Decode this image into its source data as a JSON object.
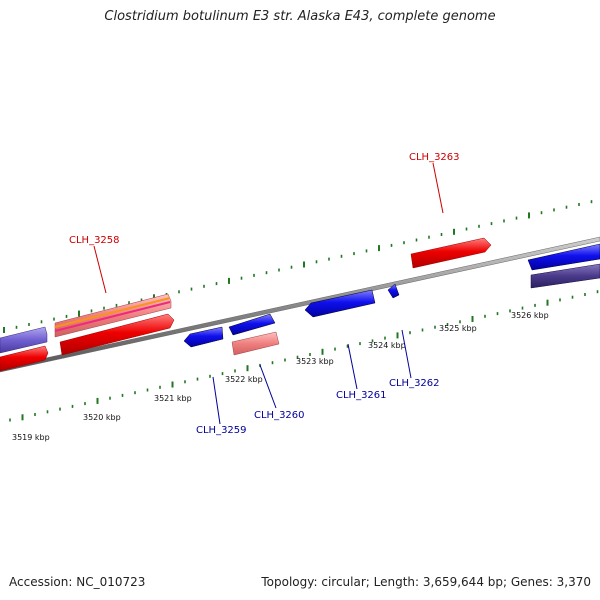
{
  "title": "Clostridium botulinum E3 str. Alaska E43, complete genome",
  "footer": {
    "accession": "Accession: NC_010723",
    "summary": "Topology: circular; Length: 3,659,644 bp; Genes: 3,370"
  },
  "scale_labels": [
    "3519 kbp",
    "3520 kbp",
    "3521 kbp",
    "3522 kbp",
    "3523 kbp",
    "3524 kbp",
    "3525 kbp",
    "3526 kbp"
  ],
  "forward_genes": [
    {
      "label": "CLH_3258",
      "color": "#cc0000"
    },
    {
      "label": "CLH_3263",
      "color": "#cc0000"
    }
  ],
  "reverse_genes": [
    {
      "label": "CLH_3259",
      "color": "#000099"
    },
    {
      "label": "CLH_3260",
      "color": "#000099"
    },
    {
      "label": "CLH_3261",
      "color": "#000099"
    },
    {
      "label": "CLH_3262",
      "color": "#000099"
    }
  ],
  "colors": {
    "forward_label": "#cc0000",
    "reverse_label": "#000099",
    "cds_forward": "#ee0000",
    "cds_reverse": "#0000ee",
    "tick": "#227722",
    "axis": "#888888"
  }
}
